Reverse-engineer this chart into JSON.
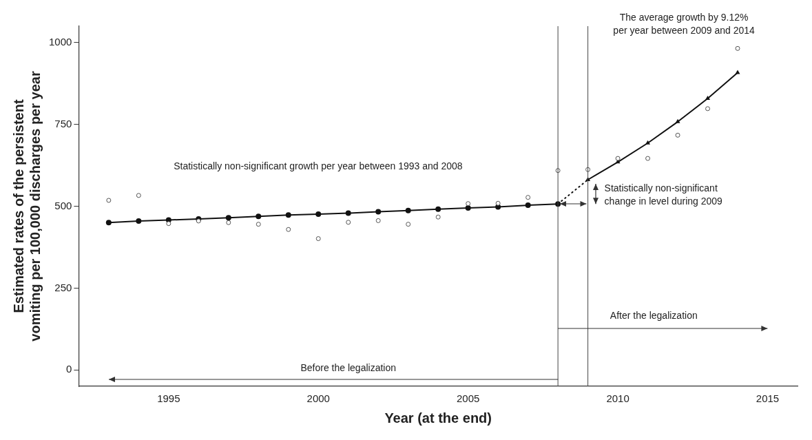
{
  "chart_data": {
    "type": "line",
    "xlabel": "Year (at the end)",
    "ylabel": "Estimated rates of the persistent vomiting per 100,000 discharges per year",
    "xlim": [
      1992,
      2016
    ],
    "xticks": [
      1995,
      2000,
      2005,
      2010,
      2015
    ],
    "ylim": [
      -50,
      1050
    ],
    "yticks": [
      0,
      250,
      500,
      750,
      1000
    ],
    "grid": false,
    "legend": false,
    "series": [
      {
        "type": "line",
        "color": "#111111",
        "marker": "circle",
        "line_style": "solid",
        "x": [
          1993,
          1994,
          1995,
          1996,
          1997,
          1998,
          1999,
          2000,
          2001,
          2002,
          2003,
          2004,
          2005,
          2006,
          2007,
          2008
        ],
        "values": [
          450,
          455,
          458,
          461,
          465,
          469,
          473,
          476,
          479,
          483,
          487,
          491,
          495,
          498,
          503,
          507
        ]
      },
      {
        "type": "line",
        "color": "#111111",
        "line_style": "dotted",
        "x": [
          2008,
          2009
        ],
        "values": [
          507,
          581
        ]
      },
      {
        "type": "line",
        "color": "#111111",
        "marker": "triangle",
        "line_style": "solid",
        "x": [
          2009,
          2010,
          2011,
          2012,
          2013,
          2014
        ],
        "values": [
          581,
          635,
          693,
          758,
          829,
          908
        ]
      },
      {
        "type": "scatter",
        "color": "#555555",
        "marker": "circle",
        "x": [
          1993,
          1994,
          1995,
          1996,
          1997,
          1998,
          1999,
          2000,
          2001,
          2002,
          2003,
          2004,
          2005,
          2006,
          2007,
          2008,
          2009,
          2010,
          2011,
          2012,
          2013,
          2014
        ],
        "values": [
          518,
          533,
          447,
          455,
          450,
          445,
          429,
          401,
          451,
          456,
          445,
          467,
          508,
          509,
          527,
          609,
          612,
          646,
          646,
          717,
          798,
          982
        ]
      }
    ],
    "ref_lines": [
      {
        "axis": "x",
        "value": 2008
      },
      {
        "axis": "x",
        "value": 2009
      }
    ],
    "annotations": [
      "Statistically non-significant growth per year between 1993 and 2008",
      "The average growth by 9.12% per year between 2009 and 2014",
      "Statistically non-significant change in level during 2009",
      "Before the legalization",
      "After the legalization"
    ]
  }
}
